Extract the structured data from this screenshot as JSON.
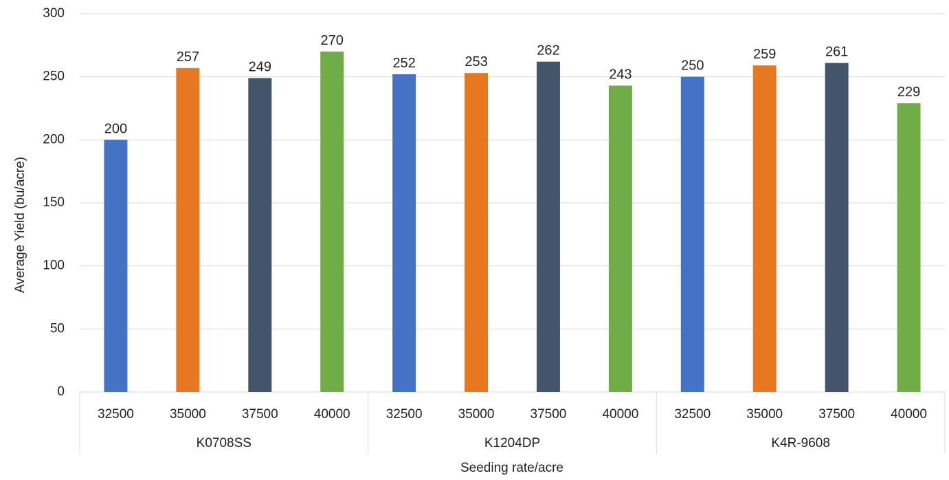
{
  "chart_data": {
    "type": "bar",
    "xlabel": "Seeding rate/acre",
    "ylabel": "Average Yield (bu/acre)",
    "ylim": [
      0,
      300
    ],
    "yticks": [
      0,
      50,
      100,
      150,
      200,
      250,
      300
    ],
    "grid": true,
    "groups": [
      {
        "name": "K0708SS",
        "bars": [
          {
            "category": "32500",
            "value": 200
          },
          {
            "category": "35000",
            "value": 257
          },
          {
            "category": "37500",
            "value": 249
          },
          {
            "category": "40000",
            "value": 270
          }
        ]
      },
      {
        "name": "K1204DP",
        "bars": [
          {
            "category": "32500",
            "value": 252
          },
          {
            "category": "35000",
            "value": 253
          },
          {
            "category": "37500",
            "value": 262
          },
          {
            "category": "40000",
            "value": 243
          }
        ]
      },
      {
        "name": "K4R-9608",
        "bars": [
          {
            "category": "32500",
            "value": 250
          },
          {
            "category": "35000",
            "value": 259
          },
          {
            "category": "37500",
            "value": 261
          },
          {
            "category": "40000",
            "value": 229
          }
        ]
      }
    ],
    "colors": {
      "32500": "#4472C4",
      "35000": "#E87722",
      "37500": "#44546A",
      "40000": "#70AD47"
    }
  }
}
